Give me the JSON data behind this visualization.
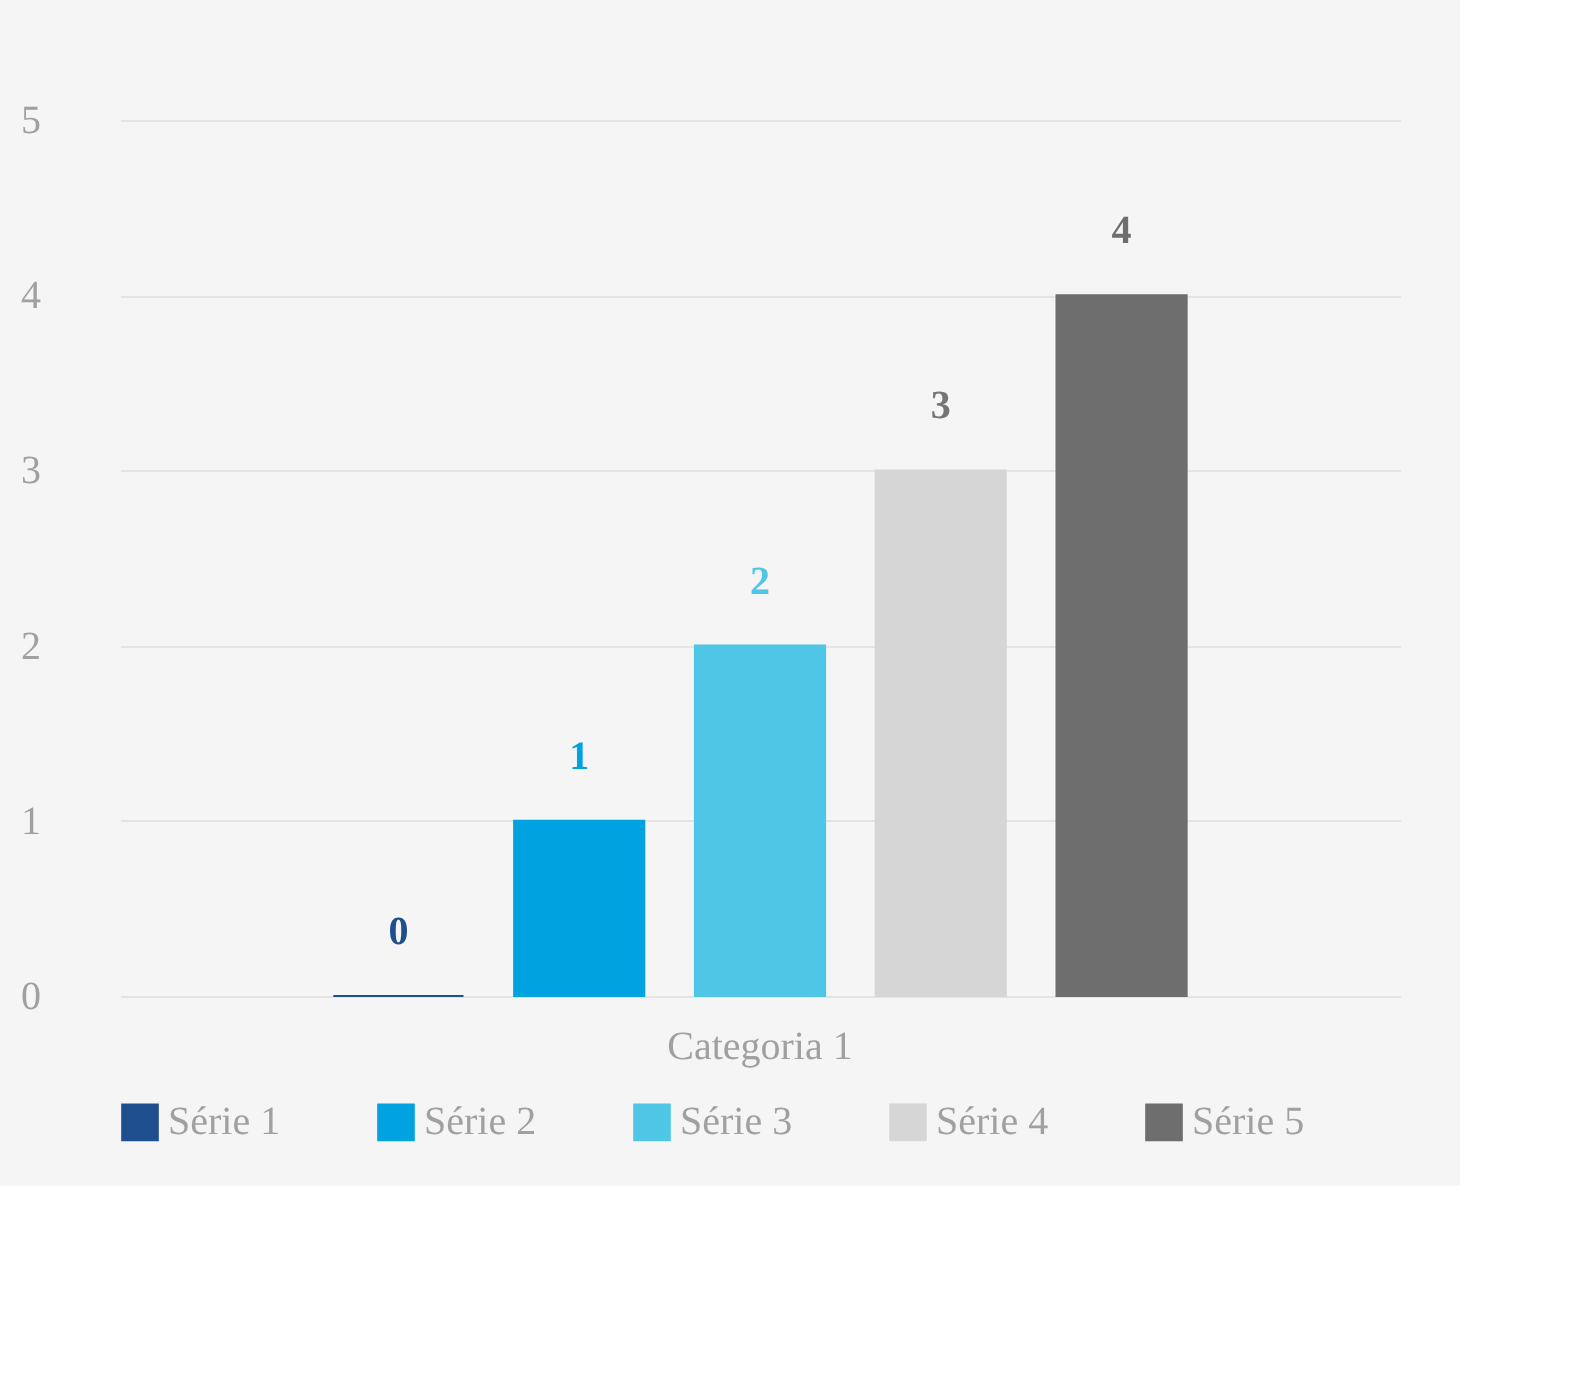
{
  "chart_data": {
    "type": "bar",
    "categories": [
      "Categoria 1"
    ],
    "series": [
      {
        "name": "Série 1",
        "color": "#1f4f8f",
        "values": [
          0
        ]
      },
      {
        "name": "Série 2",
        "color": "#00a3e0",
        "values": [
          1
        ]
      },
      {
        "name": "Série 3",
        "color": "#4fc6e6",
        "values": [
          2
        ]
      },
      {
        "name": "Série 4",
        "color": "#d6d6d6",
        "values": [
          3
        ]
      },
      {
        "name": "Série 5",
        "color": "#6e6e6e",
        "values": [
          4
        ]
      }
    ],
    "ylim": [
      0,
      5
    ],
    "yticks": [
      0,
      1,
      2,
      3,
      4,
      5
    ],
    "grid": "y",
    "legend": "bottom",
    "data_labels": true
  }
}
